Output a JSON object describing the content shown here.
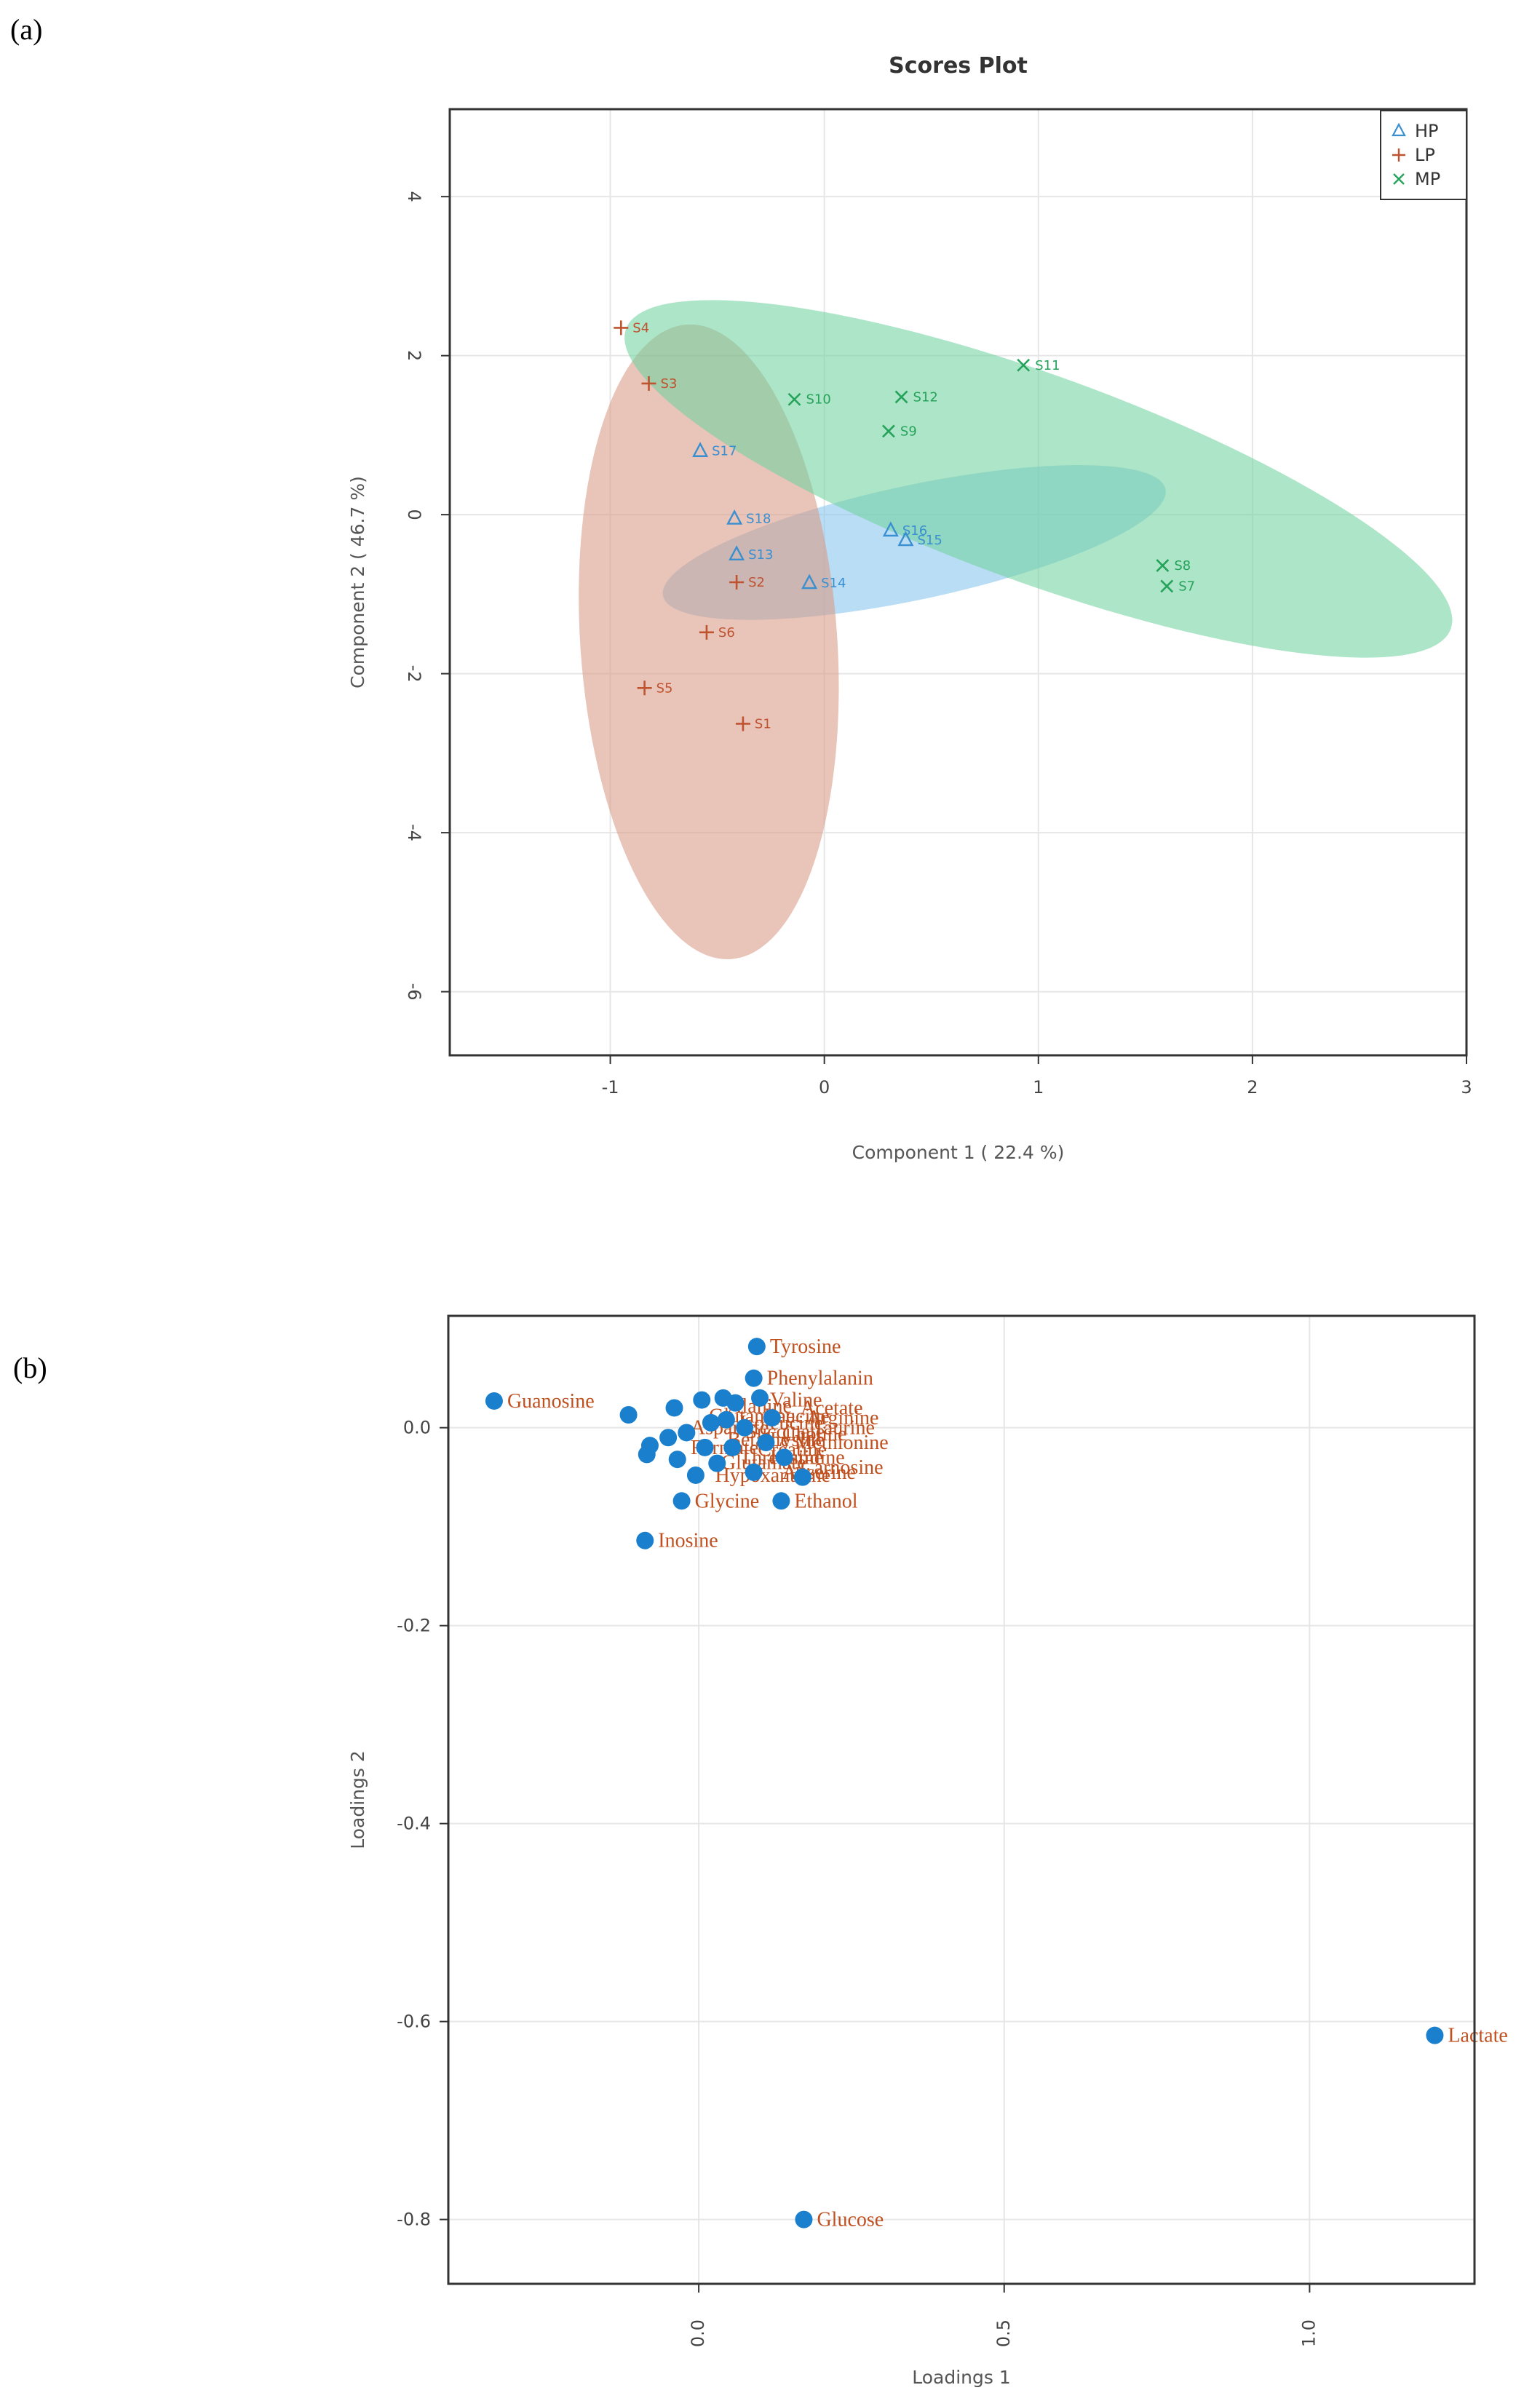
{
  "panel_a_label": "(a)",
  "panel_b_label": "(b)",
  "chart_data": [
    {
      "type": "scatter",
      "title": "Scores Plot",
      "xlabel": "Component 1 ( 22.4 %)",
      "ylabel": "Component 2 ( 46.7 %)",
      "xlim": [
        -1.75,
        3.0
      ],
      "ylim": [
        -6.8,
        5.1
      ],
      "xticks": [
        -1,
        0,
        1,
        2,
        3
      ],
      "yticks": [
        -6,
        -4,
        -2,
        0,
        2,
        4
      ],
      "legend_position": "top-right",
      "series": [
        {
          "name": "HP",
          "color": "#3a8fd0",
          "fill": "#87c4ec",
          "marker": "triangle",
          "ellipse": {
            "cx": 0.42,
            "cy": -0.35,
            "rx": 1.2,
            "ry": 0.72,
            "angle_deg": -12
          },
          "points": [
            {
              "label": "S17",
              "x": -0.58,
              "y": 0.8
            },
            {
              "label": "S18",
              "x": -0.42,
              "y": -0.05
            },
            {
              "label": "S13",
              "x": -0.41,
              "y": -0.5
            },
            {
              "label": "S14",
              "x": -0.07,
              "y": -0.86
            },
            {
              "label": "S16",
              "x": 0.31,
              "y": -0.2
            },
            {
              "label": "S15",
              "x": 0.38,
              "y": -0.32
            }
          ]
        },
        {
          "name": "LP",
          "color": "#c0532f",
          "fill": "#d79a86",
          "marker": "plus",
          "ellipse": {
            "cx": -0.54,
            "cy": -1.6,
            "rx": 0.6,
            "ry": 4.0,
            "angle_deg": -4
          },
          "points": [
            {
              "label": "S4",
              "x": -0.95,
              "y": 2.35
            },
            {
              "label": "S3",
              "x": -0.82,
              "y": 1.65
            },
            {
              "label": "S2",
              "x": -0.41,
              "y": -0.85
            },
            {
              "label": "S6",
              "x": -0.55,
              "y": -1.48
            },
            {
              "label": "S5",
              "x": -0.84,
              "y": -2.18
            },
            {
              "label": "S1",
              "x": -0.38,
              "y": -2.63
            }
          ]
        },
        {
          "name": "MP",
          "color": "#26a35b",
          "fill": "#70d29e",
          "marker": "x",
          "ellipse": {
            "cx": 1.0,
            "cy": 0.45,
            "rx": 2.05,
            "ry": 1.3,
            "angle_deg": 20
          },
          "points": [
            {
              "label": "S10",
              "x": -0.14,
              "y": 1.45
            },
            {
              "label": "S12",
              "x": 0.36,
              "y": 1.48
            },
            {
              "label": "S9",
              "x": 0.3,
              "y": 1.05
            },
            {
              "label": "S11",
              "x": 0.93,
              "y": 1.88
            },
            {
              "label": "S8",
              "x": 1.58,
              "y": -0.64
            },
            {
              "label": "S7",
              "x": 1.6,
              "y": -0.9
            }
          ]
        }
      ]
    },
    {
      "type": "scatter",
      "title": "",
      "xlabel": "Loadings 1",
      "ylabel": "Loadings 2",
      "xlim": [
        -0.41,
        1.27
      ],
      "ylim": [
        -0.865,
        0.113
      ],
      "xticks": [
        0.0,
        0.5,
        1.0
      ],
      "xtick_labels": [
        "0.0",
        "0.5",
        "1.0"
      ],
      "yticks": [
        0.0,
        -0.2,
        -0.4,
        -0.6,
        -0.8
      ],
      "ytick_labels": [
        "0.0",
        "-0.2",
        "-0.4",
        "-0.6",
        "-0.8"
      ],
      "point_color": "#1a7fcc",
      "label_color": "#c0501f",
      "labeled_points": [
        {
          "label": "Tyrosine",
          "x": 0.095,
          "y": 0.082
        },
        {
          "label": "Phenylalanin",
          "x": 0.09,
          "y": 0.05
        },
        {
          "label": "Guanosine",
          "x": -0.335,
          "y": 0.027
        },
        {
          "label": "Glycine",
          "x": -0.028,
          "y": -0.074
        },
        {
          "label": "Ethanol",
          "x": 0.135,
          "y": -0.074
        },
        {
          "label": "Inosine",
          "x": -0.088,
          "y": -0.114
        },
        {
          "label": "Lactate",
          "x": 1.205,
          "y": -0.614
        },
        {
          "label": "Glucose",
          "x": 0.172,
          "y": -0.8
        }
      ],
      "cluster_points": [
        {
          "x": -0.115,
          "y": 0.013
        },
        {
          "x": -0.08,
          "y": -0.018
        },
        {
          "x": -0.085,
          "y": -0.027
        },
        {
          "x": -0.05,
          "y": -0.01
        },
        {
          "x": -0.04,
          "y": 0.02
        },
        {
          "x": -0.035,
          "y": -0.032
        },
        {
          "x": -0.02,
          "y": -0.005
        },
        {
          "x": -0.005,
          "y": -0.048
        },
        {
          "x": 0.005,
          "y": 0.028
        },
        {
          "x": 0.02,
          "y": 0.005
        },
        {
          "x": 0.03,
          "y": -0.036
        },
        {
          "x": 0.04,
          "y": 0.03
        },
        {
          "x": 0.055,
          "y": -0.02
        },
        {
          "x": 0.06,
          "y": 0.025
        },
        {
          "x": 0.075,
          "y": 0.0
        },
        {
          "x": 0.09,
          "y": -0.045
        },
        {
          "x": 0.1,
          "y": 0.03
        },
        {
          "x": 0.11,
          "y": -0.015
        },
        {
          "x": 0.12,
          "y": 0.01
        },
        {
          "x": 0.14,
          "y": -0.03
        },
        {
          "x": 0.17,
          "y": -0.05
        },
        {
          "x": 0.01,
          "y": -0.02
        },
        {
          "x": 0.045,
          "y": 0.008
        }
      ],
      "cluster_labels": [
        {
          "label": "Glutamine",
          "x": 0.0,
          "y": 0.012
        },
        {
          "label": "Alanine",
          "x": 0.03,
          "y": 0.022
        },
        {
          "label": "Valine",
          "x": 0.1,
          "y": 0.028
        },
        {
          "label": "Isoleucine",
          "x": 0.05,
          "y": 0.005
        },
        {
          "label": "Leucine",
          "x": 0.09,
          "y": 0.012
        },
        {
          "label": "Acetate",
          "x": 0.15,
          "y": 0.02
        },
        {
          "label": "Betaine",
          "x": 0.03,
          "y": -0.012
        },
        {
          "label": "Choline",
          "x": 0.12,
          "y": -0.006
        },
        {
          "label": "Creatine",
          "x": 0.08,
          "y": -0.022
        },
        {
          "label": "Formate",
          "x": -0.03,
          "y": -0.02
        },
        {
          "label": "Histidine",
          "x": 0.1,
          "y": -0.03
        },
        {
          "label": "Glutamate",
          "x": 0.02,
          "y": -0.035
        },
        {
          "label": "Succinate",
          "x": 0.06,
          "y": -0.004
        },
        {
          "label": "Carnosine",
          "x": 0.15,
          "y": -0.04
        },
        {
          "label": "Anserine",
          "x": 0.12,
          "y": -0.045
        },
        {
          "label": "Hypoxanthine",
          "x": 0.01,
          "y": -0.048
        },
        {
          "label": "Taurine",
          "x": 0.17,
          "y": 0.0
        },
        {
          "label": "Methionine",
          "x": 0.14,
          "y": -0.015
        },
        {
          "label": "Aspartate",
          "x": -0.03,
          "y": 0.0
        },
        {
          "label": "Threonine",
          "x": 0.05,
          "y": -0.03
        },
        {
          "label": "Lysine",
          "x": 0.1,
          "y": -0.012
        },
        {
          "label": "Arginine",
          "x": 0.16,
          "y": 0.01
        }
      ]
    }
  ]
}
